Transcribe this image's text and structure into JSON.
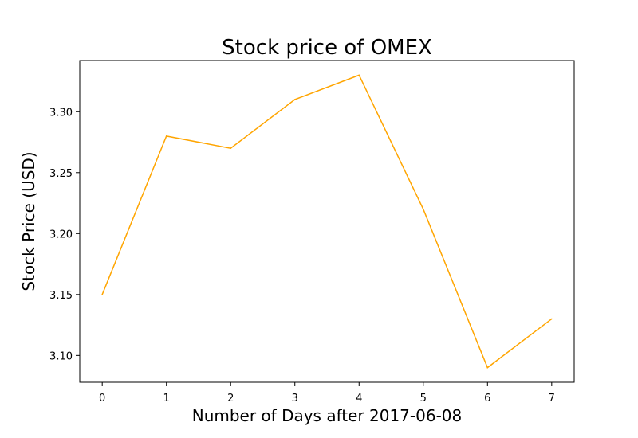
{
  "chart_data": {
    "type": "line",
    "title": "Stock price of OMEX",
    "xlabel": "Number of Days after 2017-06-08",
    "ylabel": "Stock Price (USD)",
    "x": [
      0,
      1,
      2,
      3,
      4,
      5,
      6,
      7
    ],
    "x_ticks": [
      0,
      1,
      2,
      3,
      4,
      5,
      6,
      7
    ],
    "y_ticks": [
      "3.10",
      "3.15",
      "3.20",
      "3.25",
      "3.30"
    ],
    "xlim": [
      -0.35,
      7.35
    ],
    "ylim": [
      3.078,
      3.342
    ],
    "grid": false,
    "series": [
      {
        "color": "#ffa500",
        "values": [
          3.15,
          3.28,
          3.27,
          3.31,
          3.33,
          3.22,
          3.09,
          3.13
        ]
      }
    ]
  }
}
